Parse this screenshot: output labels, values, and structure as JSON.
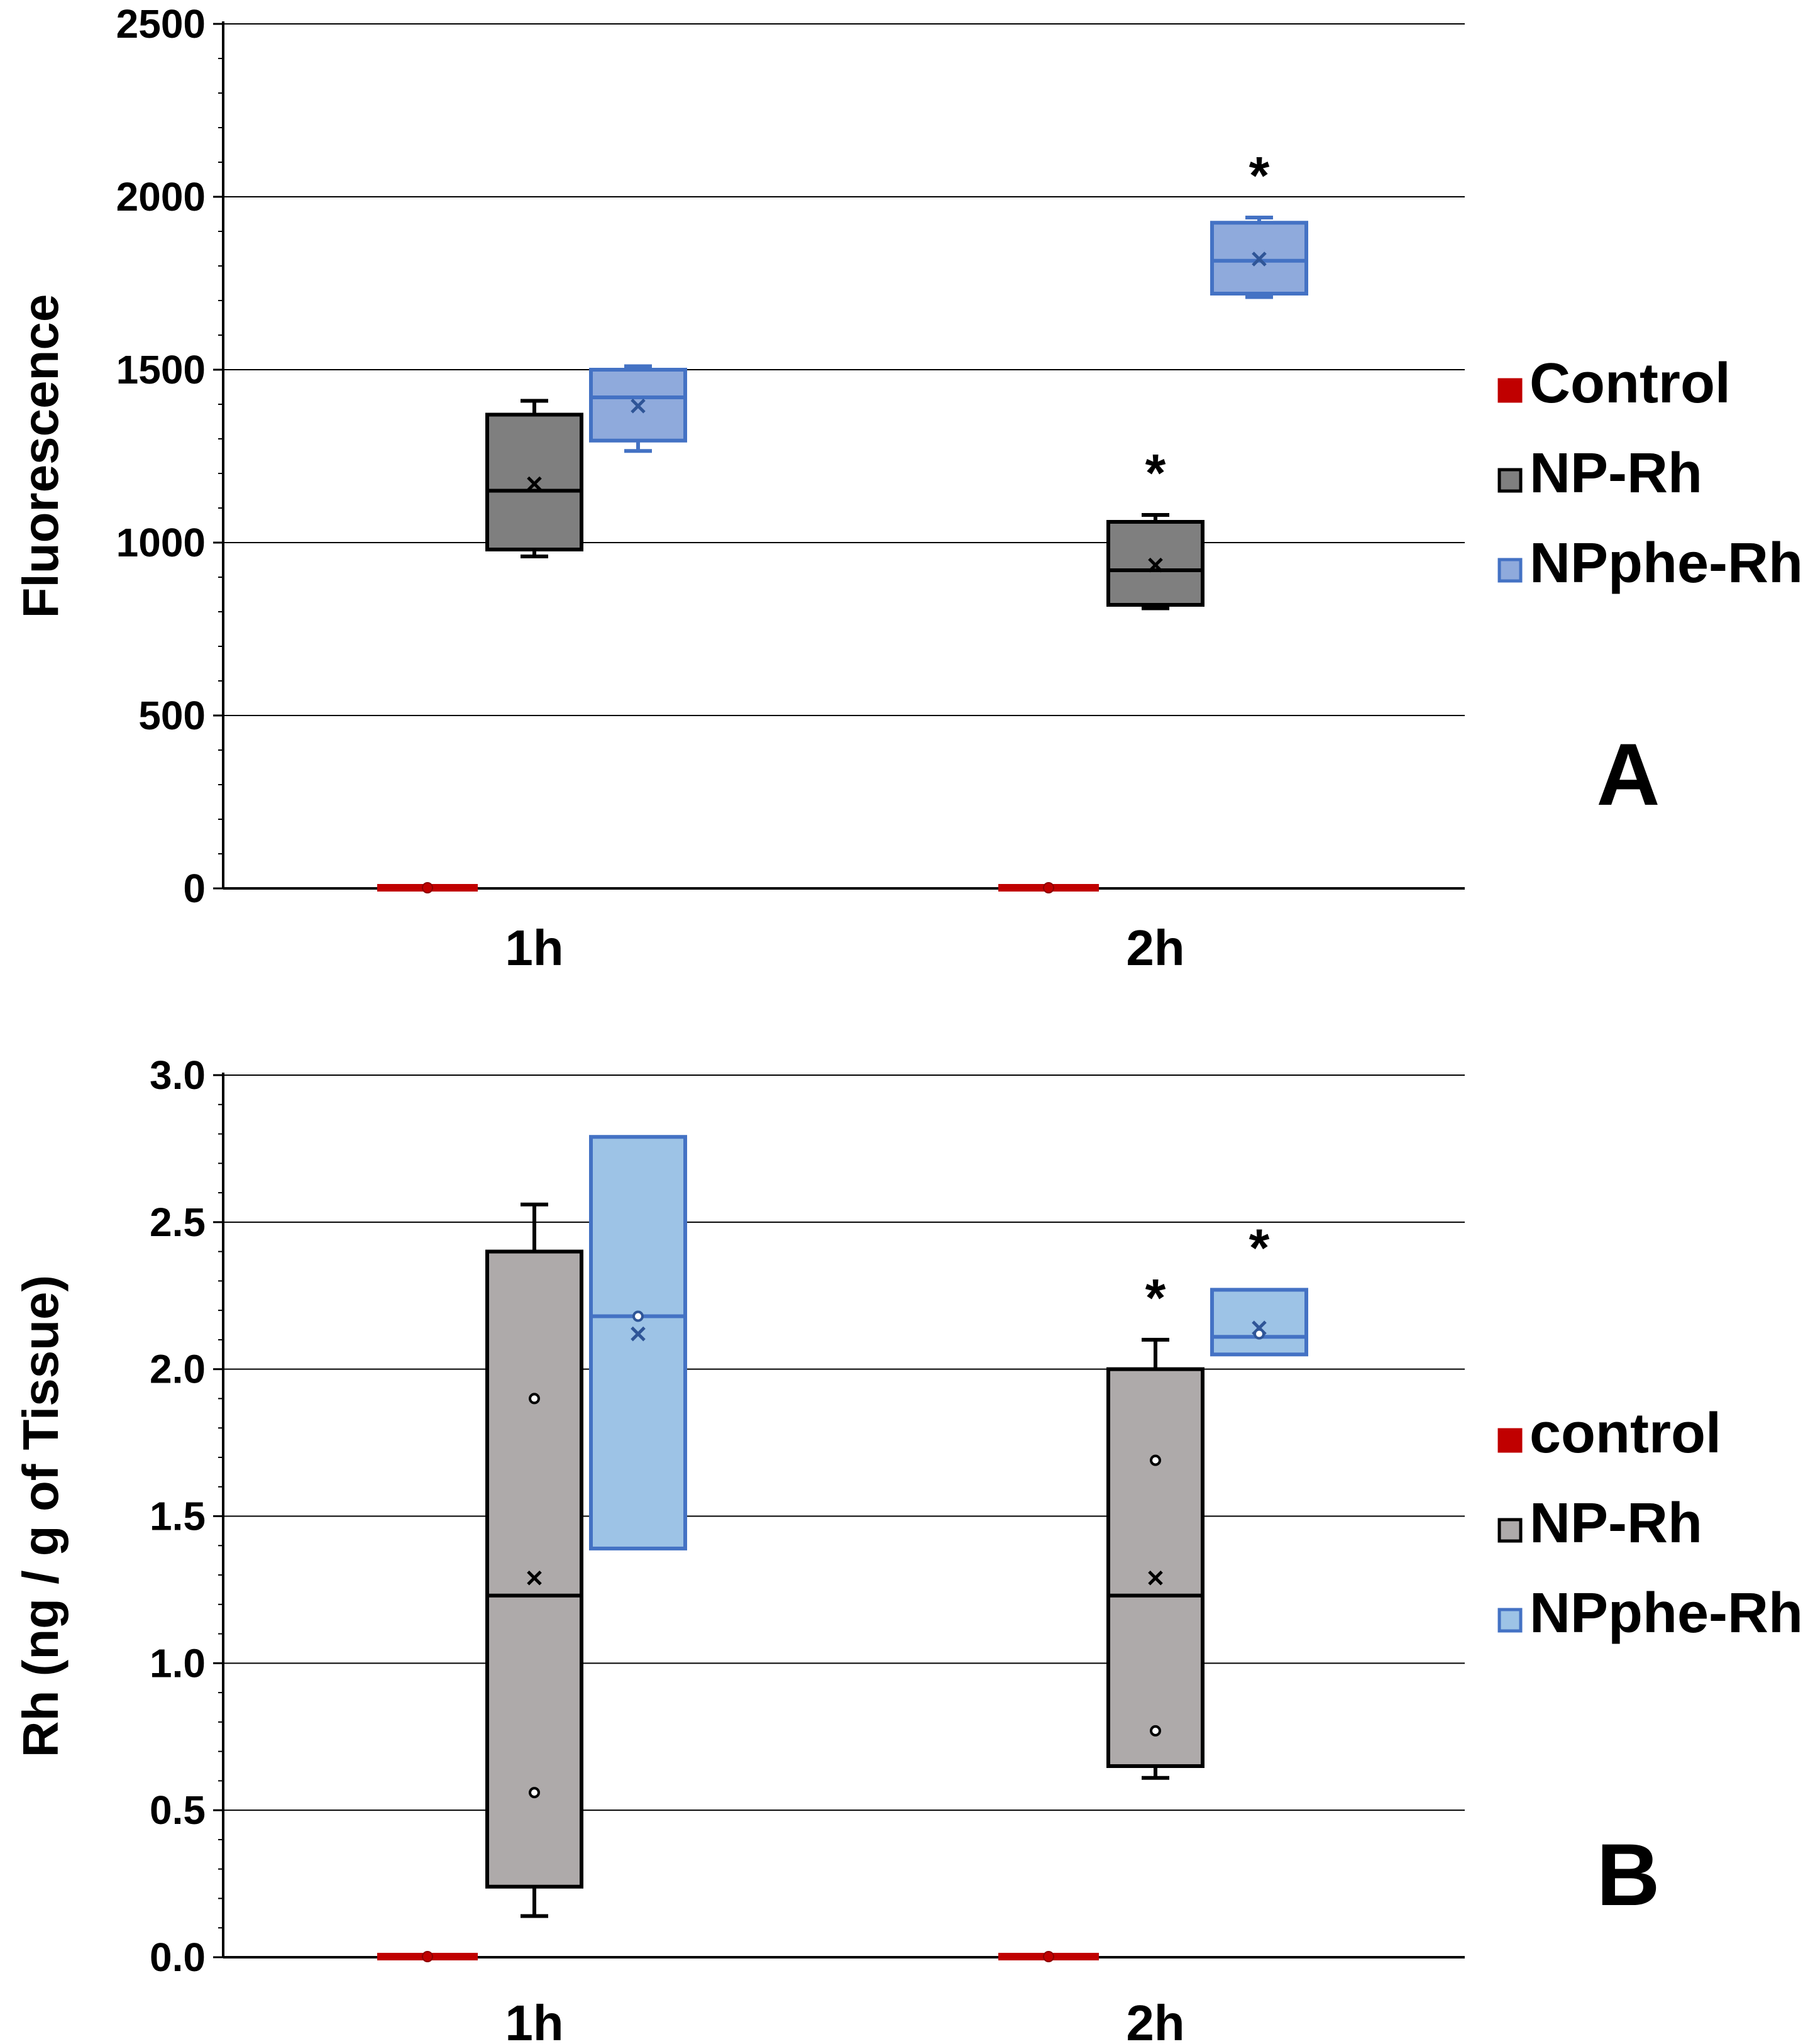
{
  "chart_data": [
    {
      "panel": "A",
      "type": "box",
      "title": "",
      "xlabel": "",
      "ylabel": "Fluorescence",
      "ylim": [
        0,
        2500
      ],
      "yticks": [
        0,
        500,
        1000,
        1500,
        2000,
        2500
      ],
      "ytick_labels": [
        "0",
        "500",
        "1000",
        "1500",
        "2000",
        "2500"
      ],
      "categories": [
        "1h",
        "2h"
      ],
      "legend": {
        "position": "right",
        "entries": [
          "Control",
          "NP-Rh",
          "NPphe-Rh"
        ]
      },
      "series": [
        {
          "name": "Control",
          "color": "#c00000",
          "fill": "#c00000",
          "boxes": [
            {
              "category": "1h",
              "min": 0,
              "q1": 0,
              "median": 0,
              "q3": 0,
              "max": 0,
              "mean": 0,
              "star": false
            },
            {
              "category": "2h",
              "min": 0,
              "q1": 0,
              "median": 0,
              "q3": 0,
              "max": 0,
              "mean": 0,
              "star": false
            }
          ]
        },
        {
          "name": "NP-Rh",
          "color": "#000000",
          "fill": "#7f7f7f",
          "boxes": [
            {
              "category": "1h",
              "min": 960,
              "q1": 980,
              "median": 1150,
              "q3": 1370,
              "max": 1410,
              "mean": 1170,
              "star": false
            },
            {
              "category": "2h",
              "min": 810,
              "q1": 820,
              "median": 920,
              "q3": 1060,
              "max": 1080,
              "mean": 935,
              "star": true
            }
          ]
        },
        {
          "name": "NPphe-Rh",
          "color": "#4472c4",
          "fill": "#8faadc",
          "boxes": [
            {
              "category": "1h",
              "min": 1265,
              "q1": 1295,
              "median": 1420,
              "q3": 1500,
              "max": 1510,
              "mean": 1395,
              "star": false
            },
            {
              "category": "2h",
              "min": 1710,
              "q1": 1720,
              "median": 1815,
              "q3": 1925,
              "max": 1940,
              "mean": 1820,
              "star": true
            }
          ]
        }
      ],
      "significance_marker": "*",
      "panel_letter": "A"
    },
    {
      "panel": "B",
      "type": "box",
      "title": "",
      "xlabel": "",
      "ylabel": "Rh (ng / g of Tissue)",
      "ylim": [
        0,
        3.0
      ],
      "yticks": [
        0,
        0.5,
        1.0,
        1.5,
        2.0,
        2.5,
        3.0
      ],
      "ytick_labels": [
        "0.0",
        "0.5",
        "1.0",
        "1.5",
        "2.0",
        "2.5",
        "3.0"
      ],
      "categories": [
        "1h",
        "2h"
      ],
      "legend": {
        "position": "right",
        "entries": [
          "control",
          "NP-Rh",
          "NPphe-Rh"
        ]
      },
      "series": [
        {
          "name": "control",
          "color": "#c00000",
          "fill": "#c00000",
          "boxes": [
            {
              "category": "1h",
              "min": 0,
              "q1": 0,
              "median": 0,
              "q3": 0,
              "max": 0,
              "mean": 0,
              "points": [],
              "star": false
            },
            {
              "category": "2h",
              "min": 0,
              "q1": 0,
              "median": 0,
              "q3": 0,
              "max": 0,
              "mean": 0,
              "points": [],
              "star": false
            }
          ]
        },
        {
          "name": "NP-Rh",
          "color": "#000000",
          "fill": "#aeaaaa",
          "boxes": [
            {
              "category": "1h",
              "min": 0.14,
              "q1": 0.24,
              "median": 1.23,
              "q3": 2.4,
              "max": 2.56,
              "mean": 1.29,
              "points": [
                1.9,
                0.56
              ],
              "star": false
            },
            {
              "category": "2h",
              "min": 0.61,
              "q1": 0.65,
              "median": 1.23,
              "q3": 2.0,
              "max": 2.1,
              "mean": 1.29,
              "points": [
                1.69,
                0.77
              ],
              "star": true
            }
          ]
        },
        {
          "name": "NPphe-Rh",
          "color": "#4472c4",
          "fill": "#9dc3e6",
          "boxes": [
            {
              "category": "1h",
              "min": 1.39,
              "q1": 1.39,
              "median": 2.18,
              "q3": 2.79,
              "max": 2.79,
              "mean": 2.12,
              "points": [
                2.18
              ],
              "star": false
            },
            {
              "category": "2h",
              "min": 2.05,
              "q1": 2.05,
              "median": 2.11,
              "q3": 2.27,
              "max": 2.27,
              "mean": 2.14,
              "points": [
                2.12
              ],
              "star": true
            }
          ]
        }
      ],
      "significance_marker": "*",
      "panel_letter": "B"
    }
  ]
}
